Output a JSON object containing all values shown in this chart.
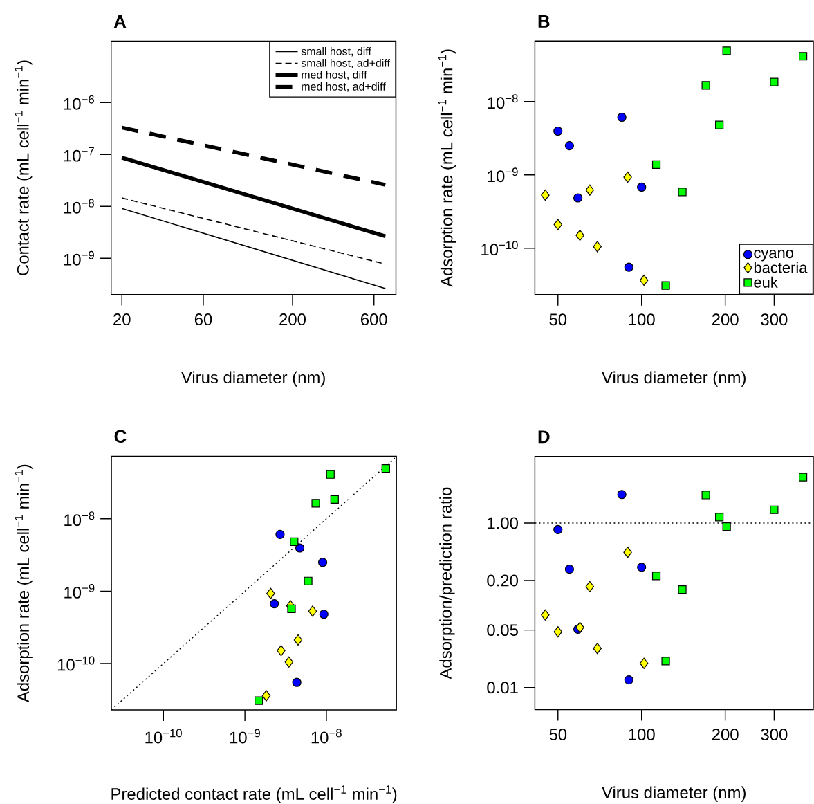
{
  "chart_data": [
    {
      "type": "line",
      "title": "A",
      "xlabel": "Virus diameter (nm)",
      "ylabel": "Contact rate (mL cell$^{−1}$ min$^{−1}$)",
      "log": "xy",
      "xlim": [
        17.3,
        807
      ],
      "ylim": [
        2e-10,
        1.53e-05
      ],
      "xticks": [
        20,
        60,
        200,
        600
      ],
      "yticks": [
        {
          "value": 1e-09,
          "label": "10$^{−9}$"
        },
        {
          "value": 1e-08,
          "label": "10$^{−8}$"
        },
        {
          "value": 1e-07,
          "label": "10$^{−7}$"
        },
        {
          "value": 1e-06,
          "label": "10$^{−6}$"
        }
      ],
      "legend": "top right",
      "series": [
        {
          "name": "small host, diff",
          "color": "#000000",
          "line_style": "solid",
          "x": [
            20,
            700
          ],
          "values": [
            9.1e-09,
            2.6e-10
          ]
        },
        {
          "name": "small host, ad+diff",
          "color": "#000000",
          "line_style": "dashed",
          "x": [
            20,
            700
          ],
          "values": [
            1.45e-08,
            7.7e-10
          ]
        },
        {
          "name": "med host, diff",
          "color": "#000000",
          "line_style": "solid",
          "x": [
            20,
            700
          ],
          "values": [
            8.7e-08,
            2.65e-09
          ]
        },
        {
          "name": "med host, ad+diff",
          "color": "#000000",
          "line_style": "dashed",
          "x": [
            20,
            700
          ],
          "values": [
            3.3e-07,
            2.6e-08
          ]
        }
      ]
    },
    {
      "type": "scatter",
      "title": "B",
      "xlabel": "Virus diameter (nm)",
      "ylabel": "Adsorption rate (mL cell$^{−1}$ min$^{−1}$)",
      "log": "xy",
      "xlim": [
        41.3,
        415
      ],
      "ylim": [
        2.33e-11,
        6.7e-08
      ],
      "xticks": [
        50,
        100,
        200,
        300
      ],
      "yticks": [
        {
          "value": 1e-10,
          "label": "10$^{−10}$"
        },
        {
          "value": 1e-09,
          "label": "10$^{−9}$"
        },
        {
          "value": 1e-08,
          "label": "10$^{−8}$"
        }
      ],
      "legend": "bottom right",
      "series": [
        {
          "name": "cyano",
          "color": "#0000ff",
          "marker": "circle",
          "x": [
            50,
            55,
            59,
            84.9,
            100,
            90
          ],
          "values": [
            3.95e-09,
            2.5e-09,
            4.85e-10,
            6.1e-09,
            6.8e-10,
            5.5e-11
          ]
        },
        {
          "name": "bacteria",
          "color": "#ffff00",
          "marker": "diamond",
          "x": [
            45,
            50,
            60,
            65.1,
            69.3,
            89.1,
            102
          ],
          "values": [
            5.3e-10,
            2.1e-10,
            1.5e-10,
            6.2e-10,
            1.05e-10,
            9.3e-10,
            3.65e-11
          ]
        },
        {
          "name": "euk",
          "color": "#00ff00",
          "marker": "square",
          "x": [
            113,
            122.1,
            140.1,
            170.3,
            190.5,
            202.3,
            300,
            381
          ],
          "values": [
            1.38e-09,
            3.1e-11,
            5.85e-10,
            1.66e-08,
            4.8e-09,
            4.93e-08,
            1.84e-08,
            4.15e-08
          ]
        }
      ]
    },
    {
      "type": "scatter",
      "title": "C",
      "xlabel": "Predicted contact rate (mL cell$^{−1}$ min$^{−1}$)",
      "ylabel": "Adsorption rate (mL cell$^{−1}$ min$^{−1}$)",
      "log": "xy",
      "xlim": [
        2.3e-11,
        7.23e-08
      ],
      "ylim": [
        2.29e-11,
        7.3e-08
      ],
      "xticks": [
        {
          "value": 1e-10,
          "label": "10$^{−10}$"
        },
        {
          "value": 1e-09,
          "label": "10$^{−9}$"
        },
        {
          "value": 1e-08,
          "label": "10$^{−8}$"
        }
      ],
      "yticks": [
        {
          "value": 1e-10,
          "label": "10$^{−10}$"
        },
        {
          "value": 1e-09,
          "label": "10$^{−9}$"
        },
        {
          "value": 1e-08,
          "label": "10$^{−8}$"
        }
      ],
      "series": [
        {
          "type": "line",
          "color": "#000000",
          "line_style": "dotted",
          "x": [
            2.3e-11,
            7.2e-08
          ],
          "values": [
            2.3e-11,
            7.2e-08
          ]
        },
        {
          "color": "#0000ff",
          "marker": "circle",
          "x": [
            2.7e-09,
            4.72e-09,
            9e-09,
            2.3e-09,
            9.3e-09,
            4.33e-09
          ],
          "values": [
            6.08e-09,
            3.95e-09,
            2.5e-09,
            6.7e-10,
            4.8e-10,
            5.5e-11
          ]
        },
        {
          "color": "#ffff00",
          "marker": "diamond",
          "x": [
            2.07e-09,
            3.62e-09,
            6.77e-09,
            4.49e-09,
            2.78e-09,
            3.47e-09,
            1.83e-09
          ],
          "values": [
            9.3e-10,
            6.3e-10,
            5.3e-10,
            2.12e-10,
            1.51e-10,
            1.05e-10,
            3.6e-11
          ]
        },
        {
          "color": "#00ff00",
          "marker": "square",
          "x": [
            5.35e-08,
            1.12e-08,
            1.26e-08,
            7.4e-09,
            4.02e-09,
            5.97e-09,
            3.73e-09,
            1.48e-09
          ],
          "values": [
            4.94e-08,
            4.09e-08,
            1.85e-08,
            1.64e-08,
            4.82e-09,
            1.38e-09,
            5.7e-10,
            3.08e-11
          ]
        }
      ]
    },
    {
      "type": "scatter",
      "title": "D",
      "xlabel": "Virus diameter (nm)",
      "ylabel": "Adsorption/prediction ratio",
      "log": "xy",
      "xlim": [
        41.3,
        415
      ],
      "ylim": [
        0.0054,
        6.45
      ],
      "xticks": [
        50,
        100,
        200,
        300
      ],
      "yticks": [
        0.01,
        0.05,
        {
          "value": 0.2,
          "label": "0.20"
        },
        {
          "value": 1,
          "label": "1.00"
        }
      ],
      "ref_lines": [
        {
          "axis": "y",
          "value": 1,
          "line_style": "dotted"
        }
      ],
      "series": [
        {
          "color": "#0000ff",
          "marker": "circle",
          "x": [
            50,
            55,
            59,
            84.9,
            100,
            90
          ],
          "values": [
            0.834,
            0.275,
            0.0512,
            2.22,
            0.29,
            0.0124
          ]
        },
        {
          "color": "#ffff00",
          "marker": "diamond",
          "x": [
            45,
            50,
            60,
            65.1,
            69.3,
            89.1,
            102
          ],
          "values": [
            0.0762,
            0.0476,
            0.0538,
            0.169,
            0.0299,
            0.441,
            0.0197
          ]
        },
        {
          "color": "#00ff00",
          "marker": "square",
          "x": [
            113,
            122.1,
            140.1,
            170.3,
            190.5,
            202.3,
            300,
            381
          ],
          "values": [
            0.228,
            0.021,
            0.155,
            2.19,
            1.18,
            0.904,
            1.45,
            3.61
          ]
        }
      ]
    }
  ]
}
